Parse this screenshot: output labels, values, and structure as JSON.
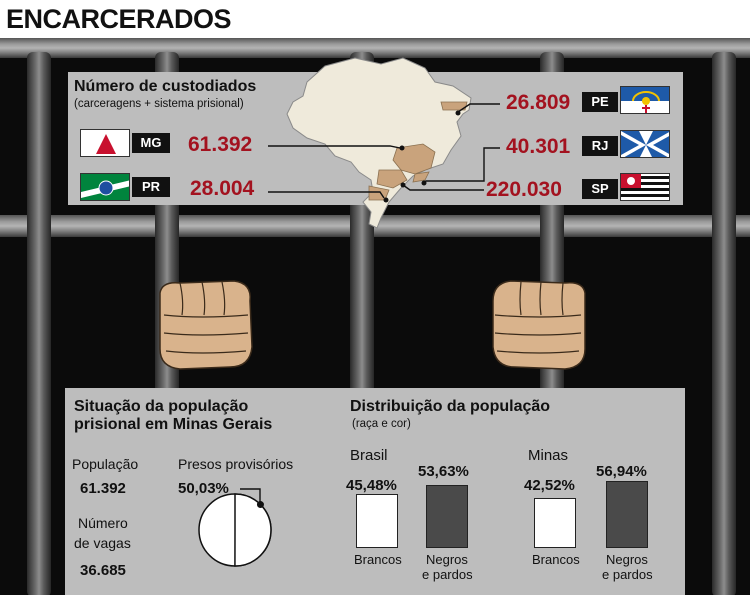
{
  "title": "ENCARCERADOS",
  "top_panel": {
    "heading": "Número de custodiados",
    "subheading": "(carceragens + sistema prisional)",
    "states": [
      {
        "code": "MG",
        "value": "61.392"
      },
      {
        "code": "PR",
        "value": "28.004"
      },
      {
        "code": "PE",
        "value": "26.809"
      },
      {
        "code": "RJ",
        "value": "40.301"
      },
      {
        "code": "SP",
        "value": "220.030"
      }
    ]
  },
  "situation": {
    "heading_line1": "Situação da população",
    "heading_line2": "prisional em Minas Gerais",
    "pop_label": "População",
    "pop_value": "61.392",
    "vagas_label_line1": "Número",
    "vagas_label_line2": "de vagas",
    "vagas_value": "36.685",
    "provisional_label": "Presos provisórios",
    "provisional_value": "50,03%"
  },
  "distribution": {
    "heading": "Distribuição da população",
    "subheading": "(raça e cor)",
    "brasil": {
      "label": "Brasil",
      "brancos": "45,48%",
      "negros": "53,63%"
    },
    "minas": {
      "label": "Minas",
      "brancos": "42,52%",
      "negros": "56,94%"
    },
    "brancos_label": "Brancos",
    "negros_line1": "Negros",
    "negros_line2": "e pardos"
  },
  "chart_data": [
    {
      "type": "table",
      "title": "Número de custodiados",
      "subtitle": "(carceragens + sistema prisional)",
      "categories": [
        "MG",
        "PR",
        "PE",
        "RJ",
        "SP"
      ],
      "values": [
        61392,
        28004,
        26809,
        40301,
        220030
      ]
    },
    {
      "type": "pie",
      "title": "Presos provisórios",
      "values": [
        50.03,
        49.97
      ]
    },
    {
      "type": "bar",
      "title": "Distribuição da população",
      "subtitle": "(raça e cor)",
      "categories": [
        "Brasil",
        "Minas"
      ],
      "series": [
        {
          "name": "Brancos",
          "values": [
            45.48,
            42.52
          ]
        },
        {
          "name": "Negros e pardos",
          "values": [
            53.63,
            56.94
          ]
        }
      ]
    }
  ],
  "colors": {
    "accent_red": "#a3121f",
    "panel": "#bdbdbd",
    "map_land": "#efeadb",
    "map_highlight": "#c9a37c",
    "brancos_fill": "#ffffff",
    "negros_fill": "#4a4a4a"
  }
}
